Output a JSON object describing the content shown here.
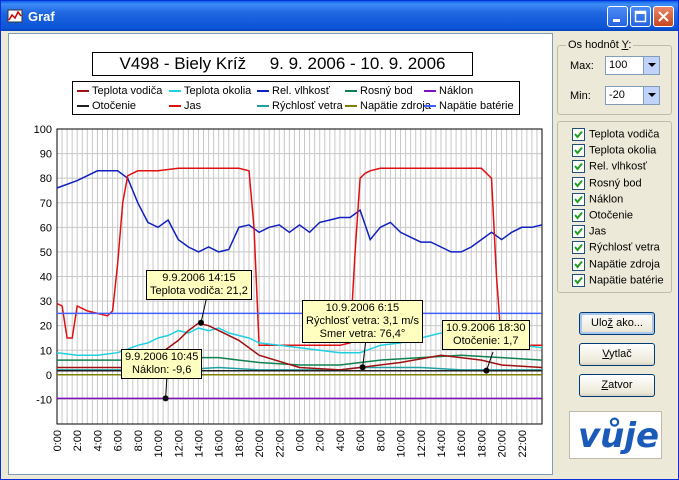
{
  "window": {
    "title": "Graf",
    "minimize_icon": "minimize-icon",
    "maximize_icon": "maximize-icon",
    "close_icon": "close-icon"
  },
  "chart_title": "V498 - Biely Kríž     9. 9. 2006 - 10. 9. 2006",
  "legend": [
    {
      "label": "Teplota vodiča",
      "color": "#a01010"
    },
    {
      "label": "Teplota okolia",
      "color": "#20d0e0"
    },
    {
      "label": "Rel. vlhkosť",
      "color": "#1020c0"
    },
    {
      "label": "Rosný bod",
      "color": "#108050"
    },
    {
      "label": "Náklon",
      "color": "#8010c0"
    },
    {
      "label": "Otočenie",
      "color": "#202020"
    },
    {
      "label": "Jas",
      "color": "#e01010"
    },
    {
      "label": "Rýchlosť vetra",
      "color": "#20a0a0"
    },
    {
      "label": "Napätie zdroja",
      "color": "#808000"
    },
    {
      "label": "Napätie batérie",
      "color": "#4060ff"
    }
  ],
  "chart_data": {
    "type": "line",
    "ylim": [
      -20,
      100
    ],
    "y_ticks": [
      "100",
      "90",
      "80",
      "70",
      "60",
      "50",
      "40",
      "30",
      "20",
      "10",
      "0",
      "-10"
    ],
    "x_ticks": [
      "0:00",
      "2:00",
      "4:00",
      "6:00",
      "8:00",
      "10:00",
      "12:00",
      "14:00",
      "16:00",
      "18:00",
      "20:00",
      "22:00",
      "0:00",
      "2:00",
      "4:00",
      "6:00",
      "8:00",
      "10:00",
      "12:00",
      "14:00",
      "16:00",
      "18:00",
      "20:00",
      "22:00"
    ],
    "x_range_hours": [
      0,
      48
    ],
    "series": [
      {
        "name": "Rel. vlhkosť",
        "color": "#1020c0",
        "x": [
          0,
          2,
          3,
          4,
          5,
          6,
          7,
          8,
          9,
          10,
          11,
          12,
          13,
          14,
          15,
          16,
          17,
          18,
          19,
          20,
          21,
          22,
          23,
          24,
          25,
          26,
          27,
          28,
          29,
          30,
          31,
          32,
          33,
          34,
          35,
          36,
          37,
          38,
          39,
          40,
          41,
          42,
          43,
          44,
          45,
          46,
          47,
          48
        ],
        "values": [
          76,
          79,
          81,
          83,
          83,
          83,
          80,
          70,
          62,
          60,
          63,
          55,
          52,
          50,
          52,
          50,
          51,
          60,
          61,
          58,
          60,
          61,
          58,
          61,
          58,
          62,
          63,
          64,
          64,
          67,
          55,
          60,
          62,
          58,
          56,
          54,
          54,
          52,
          50,
          50,
          52,
          55,
          58,
          55,
          58,
          60,
          60,
          61
        ]
      },
      {
        "name": "Jas",
        "color": "#e01010",
        "x": [
          0,
          0.5,
          1,
          1.5,
          2,
          3,
          4,
          5,
          5.5,
          6,
          6.5,
          7,
          8,
          10,
          12,
          14,
          16,
          18,
          19,
          19.5,
          20,
          21,
          22,
          24,
          26,
          28,
          29,
          29.5,
          30,
          30.5,
          31,
          32,
          34,
          36,
          38,
          40,
          42,
          43,
          43.5,
          44,
          45,
          46,
          48
        ],
        "values": [
          29,
          28,
          15,
          15,
          28,
          26,
          25,
          24,
          26,
          45,
          70,
          81,
          83,
          83,
          84,
          84,
          84,
          84,
          83,
          60,
          12,
          12,
          12,
          12,
          12,
          12,
          13,
          50,
          80,
          82,
          83,
          84,
          84,
          84,
          84,
          84,
          84,
          80,
          40,
          12,
          12,
          12,
          12
        ]
      },
      {
        "name": "Napätie batérie",
        "color": "#4060ff",
        "x": [
          0,
          48
        ],
        "values": [
          25,
          25
        ]
      },
      {
        "name": "Teplota okolia",
        "color": "#20d0e0",
        "x": [
          0,
          2,
          4,
          6,
          8,
          9,
          10,
          11,
          12,
          13,
          14,
          15,
          16,
          17,
          18,
          19,
          20,
          22,
          24,
          26,
          28,
          30,
          32,
          34,
          36,
          38,
          40,
          42,
          44,
          46,
          48
        ],
        "values": [
          9,
          8,
          8,
          9,
          12,
          13,
          15,
          16,
          18,
          17,
          19,
          18,
          19,
          17,
          16,
          15,
          13,
          12,
          11,
          10,
          9,
          9,
          12,
          13,
          15,
          17,
          15,
          14,
          13,
          12,
          11
        ]
      },
      {
        "name": "Rosný bod",
        "color": "#108050",
        "x": [
          0,
          4,
          8,
          12,
          14,
          16,
          18,
          20,
          24,
          28,
          32,
          36,
          40,
          44,
          48
        ],
        "values": [
          6,
          6,
          6,
          7,
          7,
          7,
          6,
          5,
          4,
          4,
          6,
          7,
          8,
          7,
          6
        ]
      },
      {
        "name": "Rýchlosť vetra",
        "color": "#20a0a0",
        "x": [
          0,
          4,
          8,
          12,
          16,
          20,
          24,
          28,
          30,
          32,
          36,
          40,
          44,
          48
        ],
        "values": [
          2,
          2,
          2,
          2,
          3,
          2,
          2,
          2,
          3,
          3,
          3,
          2,
          2,
          2
        ]
      },
      {
        "name": "Teplota vodiča",
        "color": "#a01010",
        "x": [
          0,
          4,
          8,
          10,
          12,
          13,
          14,
          15,
          16,
          18,
          20,
          24,
          28,
          30,
          34,
          38,
          42,
          44,
          48
        ],
        "values": [
          3,
          3,
          3,
          8,
          14,
          18,
          21,
          20,
          18,
          14,
          8,
          3,
          2,
          3,
          5,
          8,
          6,
          4,
          3
        ]
      },
      {
        "name": "Otočenie",
        "color": "#202020",
        "x": [
          0,
          48
        ],
        "values": [
          1.7,
          1.7
        ]
      },
      {
        "name": "Napätie zdroja",
        "color": "#808000",
        "x": [
          0,
          48
        ],
        "values": [
          0,
          0
        ]
      },
      {
        "name": "Náklon",
        "color": "#8010c0",
        "x": [
          0,
          48
        ],
        "values": [
          -9.6,
          -9.6
        ]
      }
    ]
  },
  "tooltips": [
    {
      "line1": "9.9.2006  14:15",
      "line2": "Teplota vodiča: 21,2",
      "line3": ""
    },
    {
      "line1": "10.9.2006  6:15",
      "line2": "Rýchlosť vetra: 3,1 m/s",
      "line3": "Smer vetra: 76,4°"
    },
    {
      "line1": "10.9.2006  18:30",
      "line2": "Otočenie: 1,7",
      "line3": ""
    },
    {
      "line1": "9.9.2006  10:45",
      "line2": "Náklon: -9,6",
      "line3": ""
    }
  ],
  "axis_group": {
    "title_prefix": "Os hodnôt ",
    "title_key": "Y",
    "title_suffix": ":",
    "max_label": "Max:",
    "max_value": "100",
    "min_label": "Min:",
    "min_value": "-20"
  },
  "checkboxes": [
    {
      "label": "Teplota vodiča",
      "checked": true
    },
    {
      "label": "Teplota okolia",
      "checked": true
    },
    {
      "label": "Rel. vlhkosť",
      "checked": true
    },
    {
      "label": "Rosný bod",
      "checked": true
    },
    {
      "label": "Náklon",
      "checked": true
    },
    {
      "label": "Otočenie",
      "checked": true
    },
    {
      "label": "Jas",
      "checked": true
    },
    {
      "label": "Rýchlosť vetra",
      "checked": true
    },
    {
      "label": "Napätie zdroja",
      "checked": true
    },
    {
      "label": "Napätie batérie",
      "checked": true
    }
  ],
  "buttons": {
    "save": {
      "pre": "Ulo",
      "key": "ž",
      "post": " ako..."
    },
    "print": {
      "pre": "",
      "key": "V",
      "post": "ytlač"
    },
    "close": {
      "pre": "",
      "key": "Z",
      "post": "atvor"
    }
  },
  "logo": {
    "text": "vůje",
    "icon": "vuje-logo"
  }
}
